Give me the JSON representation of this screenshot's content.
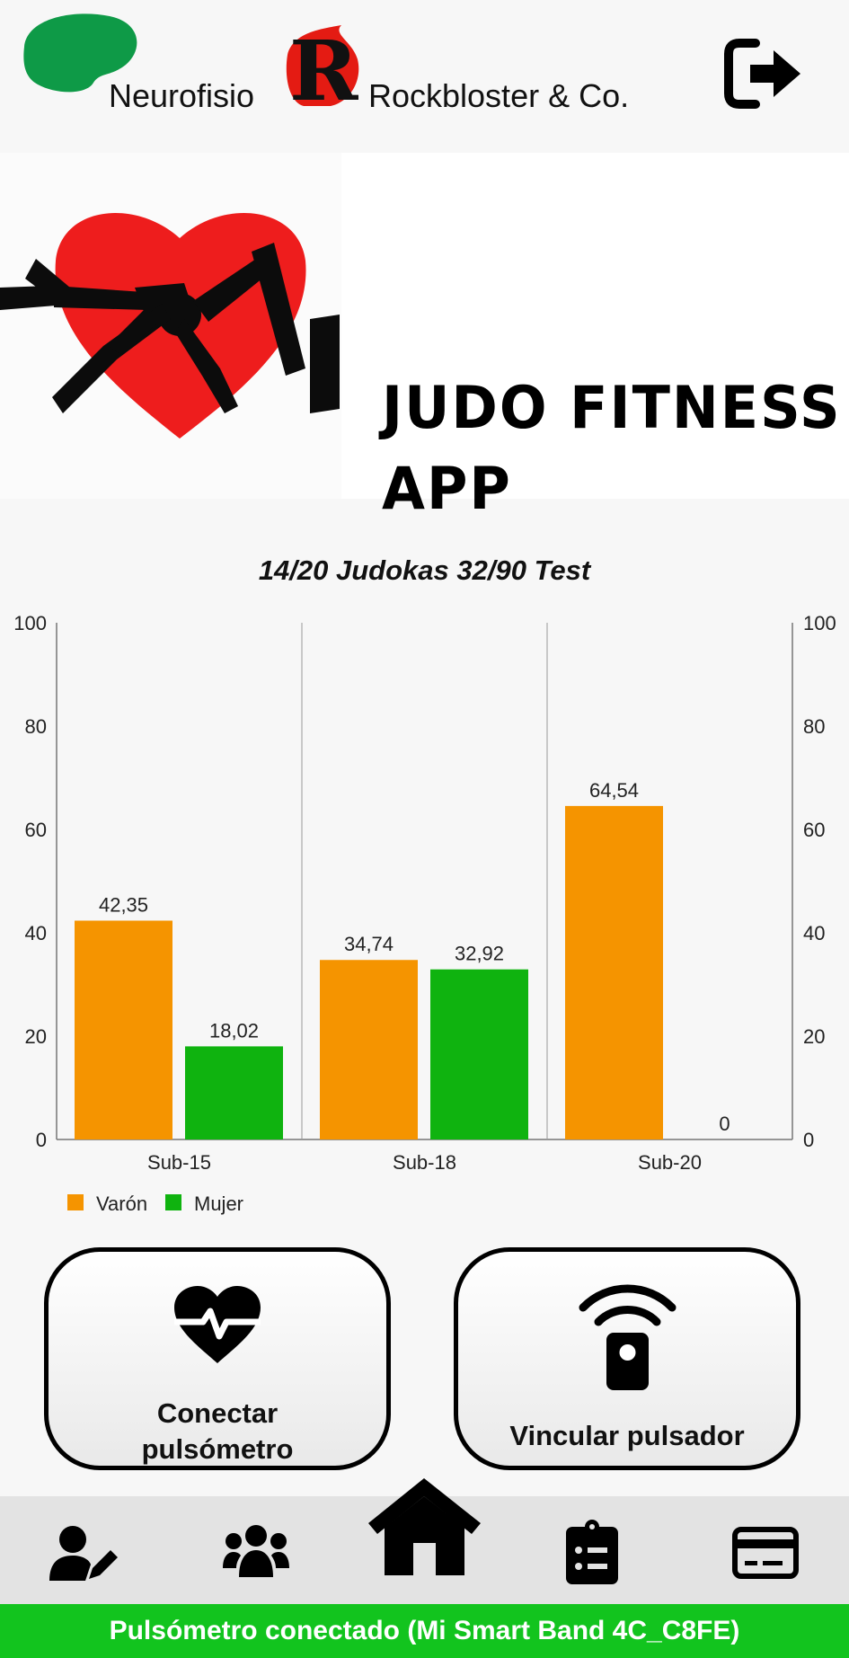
{
  "header": {
    "brand_left": "Neurofisio",
    "brand_right": "Rockbloster & Co.",
    "logo_letter": "R",
    "logout_icon": "logout-icon"
  },
  "banner": {
    "title_line1": "JUDO FITNESS",
    "title_line2": "APP",
    "logo_icon": "heart-judo-belt-logo"
  },
  "chart": {
    "title": "14/20 Judokas 32/90 Test"
  },
  "chart_data": {
    "type": "bar",
    "title": "14/20 Judokas 32/90 Test",
    "categories": [
      "Sub-15",
      "Sub-18",
      "Sub-20"
    ],
    "series": [
      {
        "name": "Varón",
        "color": "#f59400",
        "values": [
          42.35,
          34.74,
          64.54
        ],
        "labels": [
          "42,35",
          "34,74",
          "64,54"
        ]
      },
      {
        "name": "Mujer",
        "color": "#0fb30f",
        "values": [
          18.02,
          32.92,
          0
        ],
        "labels": [
          "18,02",
          "32,92",
          "0"
        ]
      }
    ],
    "ylim": [
      0,
      100
    ],
    "yticks": [
      "0",
      "20",
      "40",
      "60",
      "80",
      "100"
    ],
    "dual_y_axis": true,
    "legend": "bottom-left",
    "xlabel": "",
    "ylabel": ""
  },
  "actions": {
    "connect_label_line1": "Conectar",
    "connect_label_line2": "pulsómetro",
    "connect_icon": "heart-rate-icon",
    "link_label": "Vincular pulsador",
    "link_icon": "remote-signal-icon"
  },
  "nav": {
    "items": [
      {
        "icon": "user-edit-icon"
      },
      {
        "icon": "users-group-icon"
      },
      {
        "icon": "home-icon"
      },
      {
        "icon": "clipboard-list-icon"
      },
      {
        "icon": "credit-card-icon"
      }
    ]
  },
  "status": {
    "text": "Pulsómetro conectado (Mi Smart Band 4C_C8FE)",
    "color": "#12c41e"
  }
}
